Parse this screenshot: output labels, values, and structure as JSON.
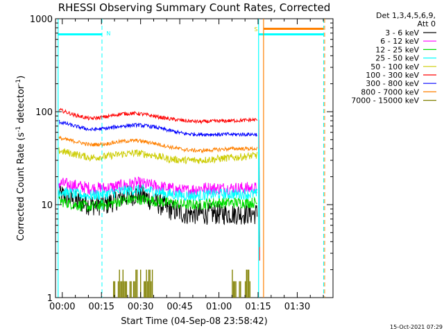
{
  "chart_data": {
    "type": "line",
    "title": "RHESSI Observing Summary Count Rates, Corrected",
    "xlabel": "Start Time (04-Sep-08 23:58:42)",
    "ylabel": "Corrected Count Rate (s",
    "ylabel_sup1": "-1",
    "ylabel_mid": " detector",
    "ylabel_sup2": "-1",
    "ylabel_end": ")",
    "x_unit": "minutes since start",
    "xlim": [
      -1.3,
      105
    ],
    "ylim": [
      1,
      1000
    ],
    "y_scale": "log",
    "x_ticks": [
      {
        "value": 1.3,
        "label": "00:00"
      },
      {
        "value": 16.3,
        "label": "00:15"
      },
      {
        "value": 31.3,
        "label": "00:30"
      },
      {
        "value": 46.3,
        "label": "00:45"
      },
      {
        "value": 61.3,
        "label": "01:00"
      },
      {
        "value": 76.3,
        "label": "01:15"
      },
      {
        "value": 91.3,
        "label": "01:30"
      }
    ],
    "y_ticks": [
      {
        "value": 1,
        "label": "1"
      },
      {
        "value": 10,
        "label": "10"
      },
      {
        "value": 100,
        "label": "100"
      },
      {
        "value": 1000,
        "label": "1000"
      }
    ],
    "legend": {
      "title_line1": "Det 1,3,4,5,6,9,",
      "title_line2": "Att 0",
      "placement": "right"
    },
    "series": [
      {
        "name": "3 - 6 keV",
        "color": "#000000",
        "x": [
          0,
          6,
          12,
          18,
          24,
          30,
          36,
          42,
          48,
          54,
          60,
          66,
          72,
          76
        ],
        "y": [
          13,
          11,
          10,
          10,
          12,
          13,
          11,
          9,
          8,
          8,
          8,
          8,
          8,
          8
        ],
        "noise": 0.12
      },
      {
        "name": "6 - 12 keV",
        "color": "#ff00ff",
        "x": [
          0,
          6,
          12,
          18,
          24,
          30,
          36,
          42,
          48,
          54,
          60,
          66,
          72,
          76
        ],
        "y": [
          17,
          16,
          15,
          15,
          16,
          17,
          16,
          15,
          14,
          15,
          15,
          15,
          15,
          15
        ],
        "noise": 0.07
      },
      {
        "name": "12 - 25 keV",
        "color": "#00dd00",
        "x": [
          0,
          6,
          12,
          18,
          24,
          30,
          36,
          42,
          48,
          54,
          60,
          66,
          72,
          76
        ],
        "y": [
          11,
          10,
          9.5,
          10,
          11,
          11.5,
          11,
          10.5,
          10,
          10,
          10.5,
          10.5,
          10.5,
          10.5
        ],
        "noise": 0.06
      },
      {
        "name": "25 - 50 keV",
        "color": "#00ffff",
        "x": [
          0,
          6,
          12,
          18,
          24,
          30,
          36,
          42,
          48,
          54,
          60,
          66,
          72,
          76
        ],
        "y": [
          14,
          13,
          12.5,
          13,
          14,
          14.5,
          14,
          13,
          12.5,
          12.5,
          13,
          13,
          13,
          13
        ],
        "noise": 0.06
      },
      {
        "name": "50 - 100 keV",
        "color": "#cccc00",
        "x": [
          0,
          6,
          12,
          18,
          24,
          30,
          36,
          42,
          48,
          54,
          60,
          66,
          72,
          76
        ],
        "y": [
          38,
          35,
          32,
          33,
          35,
          36,
          34,
          31,
          30,
          30,
          31,
          32,
          33,
          34
        ],
        "noise": 0.04
      },
      {
        "name": "100 - 300 keV",
        "color": "#ff0000",
        "x": [
          0,
          6,
          12,
          18,
          24,
          30,
          36,
          42,
          48,
          54,
          60,
          66,
          72,
          76
        ],
        "y": [
          105,
          92,
          84,
          88,
          95,
          96,
          90,
          84,
          80,
          78,
          79,
          80,
          81,
          82
        ],
        "noise": 0.02
      },
      {
        "name": "300 - 800 keV",
        "color": "#0000ff",
        "x": [
          0,
          6,
          12,
          18,
          24,
          30,
          36,
          42,
          48,
          54,
          60,
          66,
          72,
          76
        ],
        "y": [
          78,
          70,
          64,
          66,
          70,
          72,
          69,
          63,
          58,
          57,
          57,
          57,
          57,
          57
        ],
        "noise": 0.02
      },
      {
        "name": "800 - 7000 keV",
        "color": "#ff8000",
        "x": [
          0,
          6,
          12,
          18,
          24,
          30,
          36,
          42,
          48,
          54,
          60,
          66,
          72,
          76
        ],
        "y": [
          52,
          48,
          44,
          45,
          48,
          49,
          46,
          42,
          39,
          38,
          39,
          40,
          40,
          40
        ],
        "noise": 0.02
      },
      {
        "name": "7000 - 15000 keV",
        "color": "#808000",
        "x": [],
        "y": []
      }
    ],
    "annotations": {
      "night_marker": "N",
      "saa_marker": "S",
      "date_stamp": "15-Oct-2021 07:29"
    }
  }
}
